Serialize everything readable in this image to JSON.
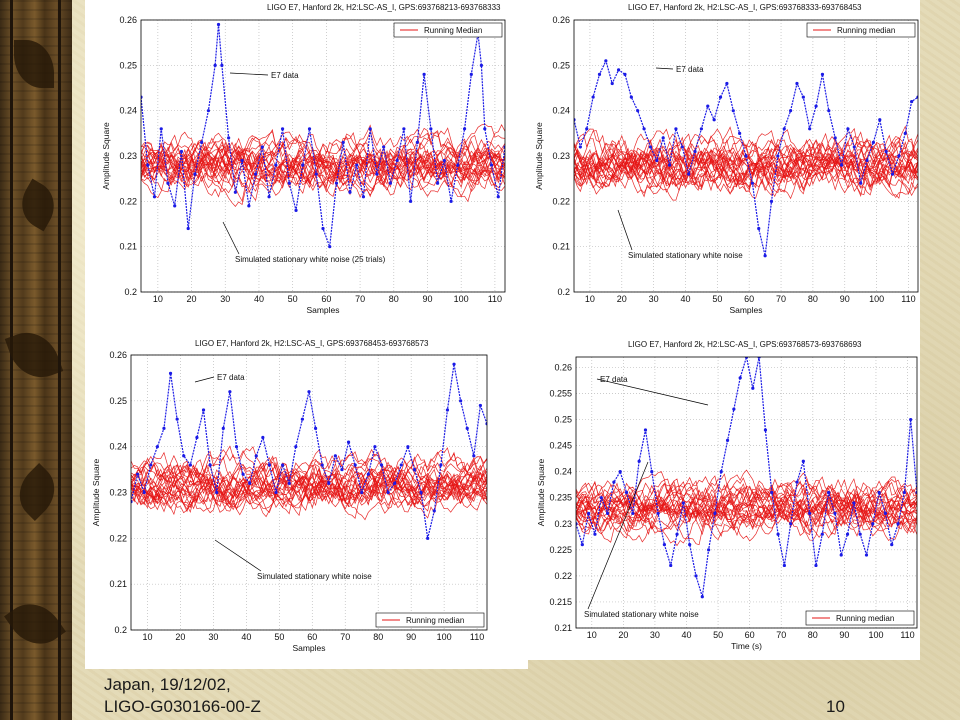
{
  "footer": {
    "line1": "Japan, 19/12/02,",
    "line2": "LIGO-G030166-00-Z",
    "page_number": "10"
  },
  "colors": {
    "data_series": "#1a1ae6",
    "noise_series": "#e61414"
  },
  "chart_data": [
    {
      "type": "line",
      "title": "LIGO E7, Hanford 2k, H2:LSC-AS_I, GPS:693768213-693768333",
      "xlabel": "Samples",
      "ylabel": "Amplitude Square",
      "xlim": [
        5,
        113
      ],
      "ylim": [
        0.2,
        0.26
      ],
      "xticks": [
        10,
        20,
        30,
        40,
        50,
        60,
        70,
        80,
        90,
        100,
        110
      ],
      "yticks": [
        "0.2",
        "0.21",
        "0.22",
        "0.23",
        "0.24",
        "0.25",
        "0.26"
      ],
      "grid": true,
      "legend": "Running Median",
      "legend_position": "top-right",
      "noise_band": [
        0.217,
        0.24
      ],
      "annotations": [
        "E7 data",
        "Simulated stationary white noise (25 trials)"
      ],
      "series": [
        {
          "name": "E7 data",
          "x": [
            5,
            7,
            9,
            11,
            13,
            15,
            17,
            19,
            21,
            23,
            25,
            27,
            28,
            29,
            31,
            33,
            35,
            37,
            39,
            41,
            43,
            45,
            47,
            49,
            51,
            53,
            55,
            57,
            59,
            61,
            63,
            65,
            67,
            69,
            71,
            73,
            75,
            77,
            79,
            81,
            83,
            85,
            87,
            89,
            91,
            93,
            95,
            97,
            99,
            101,
            103,
            105,
            106,
            107,
            109,
            111,
            113
          ],
          "y": [
            0.243,
            0.228,
            0.221,
            0.236,
            0.224,
            0.219,
            0.231,
            0.214,
            0.226,
            0.233,
            0.24,
            0.25,
            0.259,
            0.25,
            0.234,
            0.222,
            0.229,
            0.219,
            0.226,
            0.232,
            0.221,
            0.228,
            0.236,
            0.224,
            0.218,
            0.228,
            0.236,
            0.226,
            0.214,
            0.21,
            0.224,
            0.233,
            0.222,
            0.228,
            0.221,
            0.236,
            0.226,
            0.232,
            0.224,
            0.229,
            0.236,
            0.22,
            0.233,
            0.248,
            0.236,
            0.224,
            0.229,
            0.22,
            0.228,
            0.236,
            0.248,
            0.257,
            0.25,
            0.236,
            0.228,
            0.221,
            0.232
          ]
        }
      ]
    },
    {
      "type": "line",
      "title": "LIGO E7, Hanford 2k, H2:LSC-AS_I, GPS:693768333-693768453",
      "xlabel": "Samples",
      "ylabel": "Amplitude Square",
      "xlim": [
        5,
        113
      ],
      "ylim": [
        0.2,
        0.26
      ],
      "xticks": [
        10,
        20,
        30,
        40,
        50,
        60,
        70,
        80,
        90,
        100,
        110
      ],
      "yticks": [
        "0.2",
        "0.21",
        "0.22",
        "0.23",
        "0.24",
        "0.25",
        "0.26"
      ],
      "grid": true,
      "legend": "Running median",
      "legend_position": "top-right",
      "noise_band": [
        0.217,
        0.24
      ],
      "annotations": [
        "E7 data",
        "Simulated stationary white noise"
      ],
      "series": [
        {
          "name": "E7 data",
          "x": [
            5,
            7,
            9,
            11,
            13,
            15,
            17,
            19,
            21,
            23,
            25,
            27,
            29,
            31,
            33,
            35,
            37,
            39,
            41,
            43,
            45,
            47,
            49,
            51,
            53,
            55,
            57,
            59,
            61,
            63,
            65,
            67,
            69,
            71,
            73,
            75,
            77,
            79,
            81,
            83,
            85,
            87,
            89,
            91,
            93,
            95,
            97,
            99,
            101,
            103,
            105,
            107,
            109,
            111,
            113
          ],
          "y": [
            0.238,
            0.232,
            0.236,
            0.243,
            0.248,
            0.251,
            0.246,
            0.249,
            0.248,
            0.243,
            0.24,
            0.236,
            0.232,
            0.229,
            0.234,
            0.228,
            0.236,
            0.232,
            0.226,
            0.231,
            0.236,
            0.241,
            0.238,
            0.243,
            0.246,
            0.24,
            0.235,
            0.23,
            0.224,
            0.214,
            0.208,
            0.22,
            0.23,
            0.236,
            0.24,
            0.246,
            0.243,
            0.236,
            0.241,
            0.248,
            0.24,
            0.234,
            0.228,
            0.236,
            0.232,
            0.224,
            0.229,
            0.233,
            0.238,
            0.231,
            0.226,
            0.23,
            0.235,
            0.242,
            0.243
          ]
        }
      ]
    },
    {
      "type": "line",
      "title": "LIGO E7, Hanford 2k, H2:LSC-AS_I, GPS:693768453-693768573",
      "xlabel": "Samples",
      "ylabel": "Amplitude Square",
      "xlim": [
        5,
        113
      ],
      "ylim": [
        0.2,
        0.26
      ],
      "xticks": [
        10,
        20,
        30,
        40,
        50,
        60,
        70,
        80,
        90,
        100,
        110
      ],
      "yticks": [
        "0.2",
        "0.21",
        "0.22",
        "0.23",
        "0.24",
        "0.25",
        "0.26"
      ],
      "grid": true,
      "legend": "Running median",
      "legend_position": "bottom-right",
      "noise_band": [
        0.221,
        0.243
      ],
      "annotations": [
        "E7 data",
        "Simulated stationary white noise"
      ],
      "series": [
        {
          "name": "E7 data",
          "x": [
            5,
            7,
            9,
            11,
            13,
            15,
            17,
            19,
            21,
            23,
            25,
            27,
            29,
            31,
            33,
            35,
            37,
            39,
            41,
            43,
            45,
            47,
            49,
            51,
            53,
            55,
            57,
            59,
            61,
            63,
            65,
            67,
            69,
            71,
            73,
            75,
            77,
            79,
            81,
            83,
            85,
            87,
            89,
            91,
            93,
            95,
            97,
            99,
            101,
            103,
            105,
            107,
            109,
            111,
            113
          ],
          "y": [
            0.228,
            0.234,
            0.23,
            0.236,
            0.24,
            0.244,
            0.256,
            0.246,
            0.238,
            0.236,
            0.242,
            0.248,
            0.236,
            0.23,
            0.244,
            0.252,
            0.24,
            0.234,
            0.232,
            0.238,
            0.242,
            0.236,
            0.23,
            0.236,
            0.232,
            0.24,
            0.246,
            0.252,
            0.244,
            0.236,
            0.232,
            0.238,
            0.235,
            0.241,
            0.236,
            0.23,
            0.234,
            0.24,
            0.236,
            0.23,
            0.232,
            0.236,
            0.24,
            0.235,
            0.23,
            0.22,
            0.226,
            0.236,
            0.248,
            0.258,
            0.25,
            0.244,
            0.238,
            0.249,
            0.245
          ]
        }
      ]
    },
    {
      "type": "line",
      "title": "LIGO E7, Hanford 2k, H2:LSC-AS_I, GPS:693768573-693768693",
      "xlabel": "Time (s)",
      "ylabel": "Amplitude Square",
      "xlim": [
        5,
        113
      ],
      "ylim": [
        0.21,
        0.262
      ],
      "xticks": [
        10,
        20,
        30,
        40,
        50,
        60,
        70,
        80,
        90,
        100,
        110
      ],
      "yticks": [
        "0.21",
        "0.215",
        "0.22",
        "0.225",
        "0.23",
        "0.235",
        "0.24",
        "0.245",
        "0.25",
        "0.255",
        "0.26"
      ],
      "grid": true,
      "legend": "Running median",
      "legend_position": "bottom-right",
      "noise_band": [
        0.224,
        0.242
      ],
      "annotations": [
        "E7 data",
        "Simulated stationary white noise"
      ],
      "series": [
        {
          "name": "E7 data",
          "x": [
            5,
            7,
            9,
            11,
            13,
            15,
            17,
            19,
            21,
            23,
            25,
            27,
            29,
            31,
            33,
            35,
            37,
            39,
            41,
            43,
            45,
            47,
            49,
            51,
            53,
            55,
            57,
            59,
            61,
            63,
            65,
            67,
            69,
            71,
            73,
            75,
            77,
            79,
            81,
            83,
            85,
            87,
            89,
            91,
            93,
            95,
            97,
            99,
            101,
            103,
            105,
            107,
            109,
            111,
            113
          ],
          "y": [
            0.23,
            0.226,
            0.232,
            0.228,
            0.235,
            0.232,
            0.238,
            0.24,
            0.236,
            0.232,
            0.242,
            0.248,
            0.24,
            0.232,
            0.226,
            0.222,
            0.228,
            0.234,
            0.226,
            0.22,
            0.216,
            0.225,
            0.232,
            0.24,
            0.246,
            0.252,
            0.258,
            0.262,
            0.256,
            0.262,
            0.248,
            0.236,
            0.228,
            0.222,
            0.23,
            0.238,
            0.242,
            0.232,
            0.222,
            0.228,
            0.236,
            0.232,
            0.224,
            0.228,
            0.234,
            0.228,
            0.224,
            0.23,
            0.236,
            0.232,
            0.226,
            0.23,
            0.236,
            0.25,
            0.236
          ]
        }
      ]
    }
  ]
}
